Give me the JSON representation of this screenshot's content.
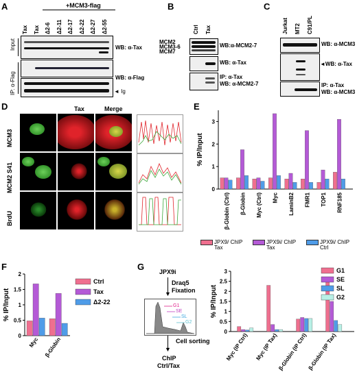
{
  "panelA": {
    "label": "A",
    "header": "+MCM3-flag",
    "lanes": [
      "Tax",
      "Tax",
      "Δ2-6",
      "Δ2-11",
      "Δ2-17",
      "Δ2-22",
      "Δ2-27",
      "Δ2-55"
    ],
    "input_label": "Input",
    "ip_label": "IP: α-Flag",
    "wb1": "WB: α-Tax",
    "wb2": "WB: α-Flag",
    "ig": "Ig"
  },
  "panelB": {
    "label": "B",
    "lanes": [
      "Ctrl",
      "Tax"
    ],
    "left_labels": [
      "MCM2",
      "MCM3-6",
      "MCM7"
    ],
    "wb1": "WB:α-MCM2-7",
    "wb2": "WB: α-Tax",
    "wb3a": "IP: α-Tax",
    "wb3b": "WB: α-MCM2-7"
  },
  "panelC": {
    "label": "C",
    "lanes": [
      "Jurkat",
      "MT2",
      "C91/PL"
    ],
    "wb1": "WB: α-MCM3",
    "wb2": "WB: α-Tax",
    "wb3a": "IP: α-Tax",
    "wb3b": "WB: α-MCM3"
  },
  "panelD": {
    "label": "D",
    "cols": [
      "Tax",
      "Merge"
    ],
    "rows": [
      "MCM3",
      "MCM2 S41",
      "BrdU"
    ]
  },
  "panelE": {
    "label": "E",
    "ylabel": "% IP/Input",
    "legend": [
      "JPX9/ ChIP Tax",
      "JPX9i/ ChIP Tax",
      "JPX9i/ ChIP Ctrl"
    ]
  },
  "panelF": {
    "label": "F",
    "ylabel": "% IP/Input"
  },
  "panelG": {
    "label": "G",
    "steps": [
      "JPX9i",
      "Draq5",
      "Fixation",
      "Cell sorting",
      "ChIP",
      "Ctrl/Tax"
    ],
    "gates": [
      "G1",
      "SE",
      "SL",
      "G2"
    ],
    "ylabel": "% IP/Input"
  },
  "colors": {
    "pink": "#ef6f8f",
    "purple": "#b45ad6",
    "blue": "#4f9ce8",
    "cyan": "#b8f0e6"
  },
  "chart_data": [
    {
      "type": "bar",
      "panel": "E",
      "categories": [
        "β-Globin (Ctrl)",
        "β-Globin",
        "Myc (Ctrl)",
        "Myc",
        "LaminB2",
        "FMR1",
        "TOP1",
        "RNF185"
      ],
      "series": [
        {
          "name": "JPX9/ ChIP Tax",
          "values": [
            0.5,
            0.5,
            0.45,
            0.5,
            0.45,
            0.45,
            0.3,
            0.75
          ]
        },
        {
          "name": "JPX9i/ ChIP Tax",
          "values": [
            0.5,
            1.75,
            0.5,
            3.35,
            0.7,
            2.6,
            0.85,
            3.1
          ]
        },
        {
          "name": "JPX9i/ ChIP Ctrl",
          "values": [
            0.4,
            0.6,
            0.35,
            0.6,
            0.3,
            0.3,
            0.45,
            0.45
          ]
        }
      ],
      "ylabel": "% IP/Input",
      "ylim": [
        0,
        3.5
      ],
      "yticks": [
        0,
        1,
        2,
        3
      ],
      "legend_position": "bottom"
    },
    {
      "type": "bar",
      "panel": "F",
      "categories": [
        "Myc",
        "β-Globin"
      ],
      "series": [
        {
          "name": "Ctrl",
          "values": [
            0.48,
            0.55
          ]
        },
        {
          "name": "Tax",
          "values": [
            1.68,
            1.37
          ]
        },
        {
          "name": "Δ2-22",
          "values": [
            0.57,
            0.4
          ]
        }
      ],
      "ylabel": "% IP/Input",
      "ylim": [
        0,
        2
      ],
      "yticks": [
        0,
        0.5,
        1,
        1.5,
        2
      ],
      "legend_position": "right"
    },
    {
      "type": "bar",
      "panel": "G",
      "categories": [
        "Myc (IP Ctrl)",
        "Myc (IP Tax)",
        "β-Globin (IP Ctrl)",
        "β-Globin (IP Tax)"
      ],
      "series": [
        {
          "name": "G1",
          "values": [
            0.25,
            2.3,
            0.62,
            2.58
          ]
        },
        {
          "name": "SE",
          "values": [
            0.1,
            0.35,
            0.7,
            1.5
          ]
        },
        {
          "name": "SL",
          "values": [
            0.08,
            0.1,
            0.65,
            0.55
          ]
        },
        {
          "name": "G2",
          "values": [
            0.18,
            0.1,
            0.65,
            0.35
          ]
        }
      ],
      "ylabel": "% IP/Input",
      "ylim": [
        0,
        3
      ],
      "yticks": [
        0,
        0.5,
        1,
        1.5,
        2,
        2.5,
        3
      ],
      "legend_position": "top-right"
    }
  ]
}
